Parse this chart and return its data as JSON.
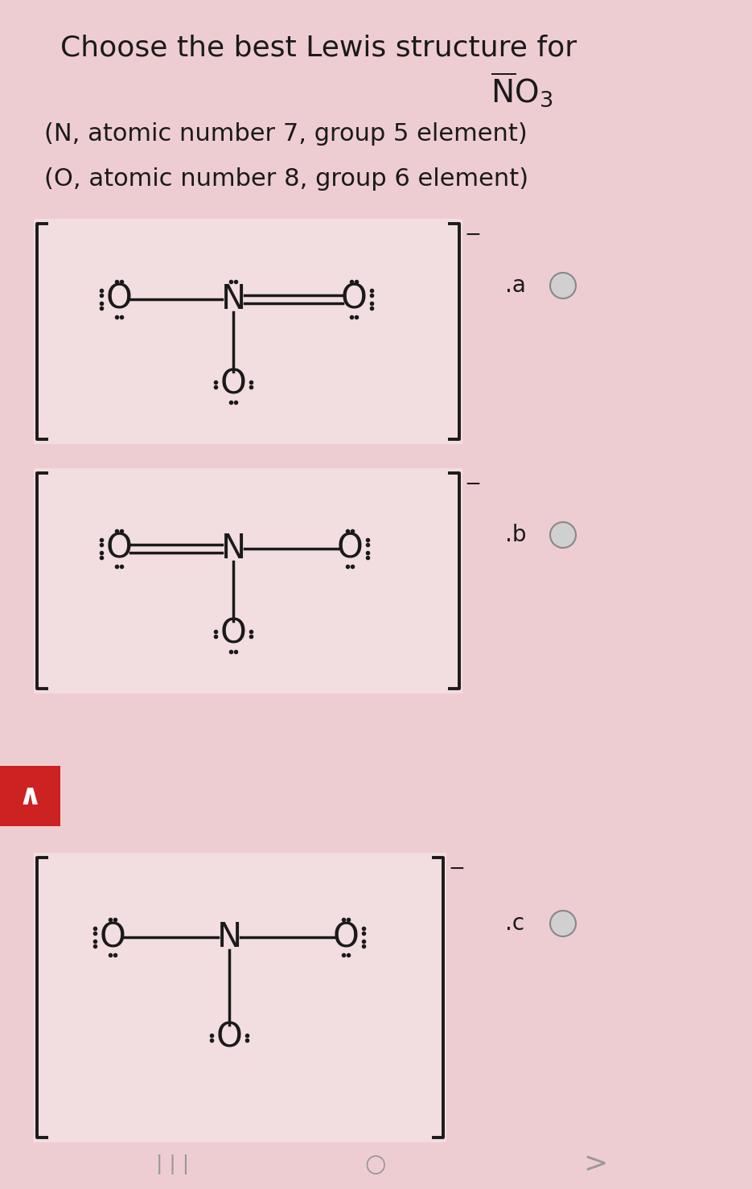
{
  "bg_color": "#eecdd2",
  "panel_bg": "#f2dde0",
  "text_color": "#1a1a1a",
  "title_line1": "Choose the best Lewis structure for",
  "no3_text": "NO",
  "panel_a_label": ".a",
  "panel_b_label": ".b",
  "panel_c_label": ".c",
  "radio_color_fill": "#d0d0d0",
  "radio_color_edge": "#888888",
  "nav_bg": "#cc2222",
  "fs_title": 26,
  "fs_subtitle": 22,
  "fs_struct": 30,
  "fs_label": 20,
  "dot_size": 4.0,
  "bond_lw": 2.5,
  "bracket_lw": 2.8
}
